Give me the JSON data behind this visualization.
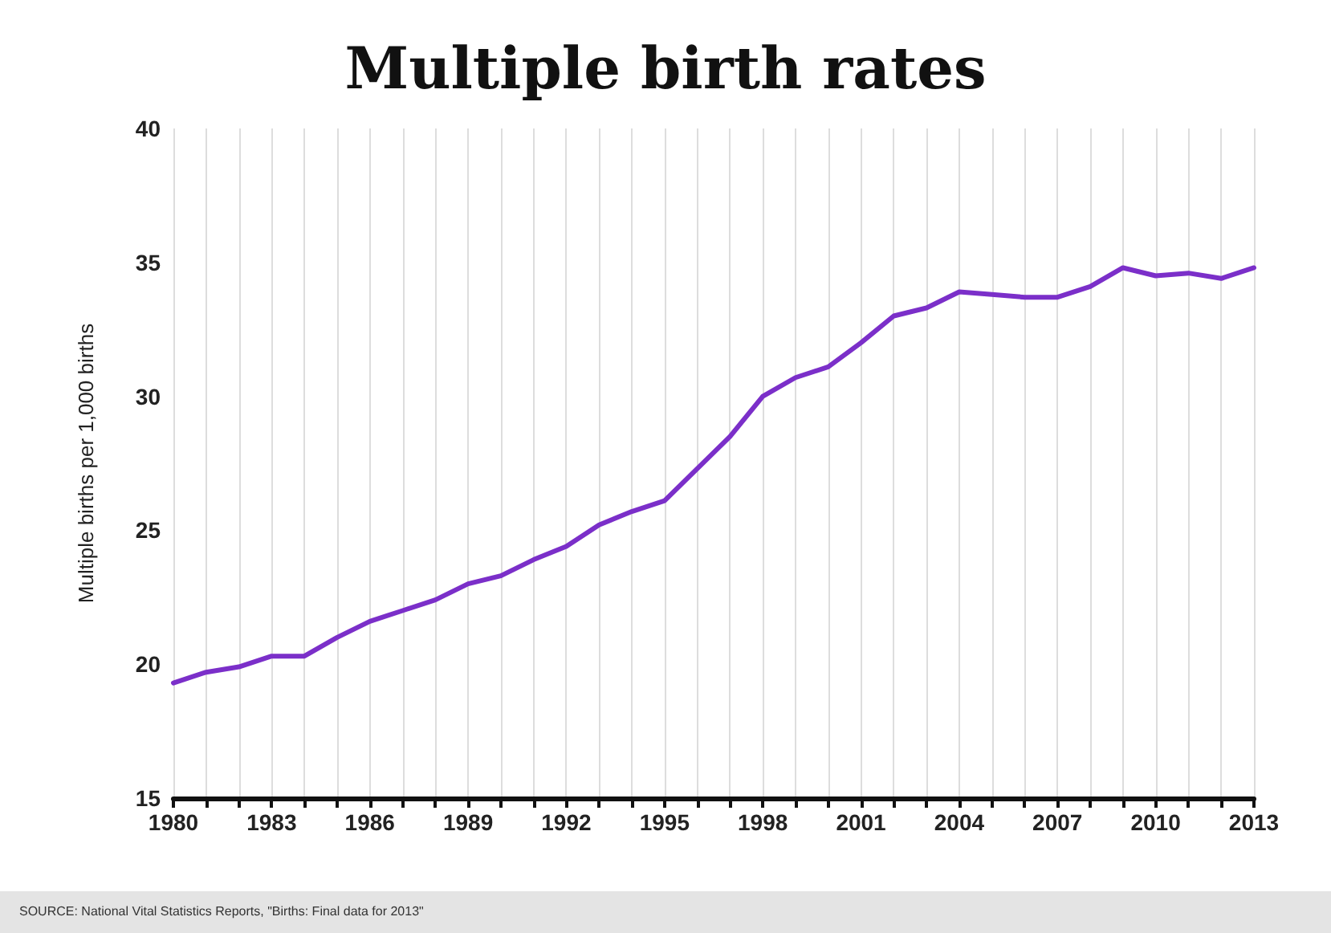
{
  "chart_data": {
    "type": "line",
    "title": "Multiple birth rates",
    "ylabel": "Multiple births per 1,000 births",
    "x": [
      1980,
      1981,
      1982,
      1983,
      1984,
      1985,
      1986,
      1987,
      1988,
      1989,
      1990,
      1991,
      1992,
      1993,
      1994,
      1995,
      1996,
      1997,
      1998,
      1999,
      2000,
      2001,
      2002,
      2003,
      2004,
      2005,
      2006,
      2007,
      2008,
      2009,
      2010,
      2011,
      2012,
      2013
    ],
    "series": [
      {
        "color": "#7b2fc9",
        "values": [
          19.3,
          19.7,
          19.9,
          20.3,
          20.3,
          21.0,
          21.6,
          22.0,
          22.4,
          23.0,
          23.3,
          23.9,
          24.4,
          25.2,
          25.7,
          26.1,
          27.3,
          28.5,
          30.0,
          30.7,
          31.1,
          32.0,
          33.0,
          33.3,
          33.9,
          33.8,
          33.7,
          33.7,
          34.1,
          34.8,
          34.5,
          34.6,
          34.4,
          34.8
        ]
      }
    ],
    "xlim": [
      1980,
      2013
    ],
    "xticks": [
      1980,
      {
        "value": 1981,
        "label": null
      },
      {
        "value": 1982,
        "label": null
      },
      1983,
      {
        "value": 1984,
        "label": null
      },
      {
        "value": 1985,
        "label": null
      },
      1986,
      {
        "value": 1987,
        "label": null
      },
      {
        "value": 1988,
        "label": null
      },
      1989,
      {
        "value": 1990,
        "label": null
      },
      {
        "value": 1991,
        "label": null
      },
      1992,
      {
        "value": 1993,
        "label": null
      },
      {
        "value": 1994,
        "label": null
      },
      1995,
      {
        "value": 1996,
        "label": null
      },
      {
        "value": 1997,
        "label": null
      },
      1998,
      {
        "value": 1999,
        "label": null
      },
      {
        "value": 2000,
        "label": null
      },
      2001,
      {
        "value": 2002,
        "label": null
      },
      {
        "value": 2003,
        "label": null
      },
      2004,
      {
        "value": 2005,
        "label": null
      },
      {
        "value": 2006,
        "label": null
      },
      2007,
      {
        "value": 2008,
        "label": null
      },
      {
        "value": 2009,
        "label": null
      },
      2010,
      {
        "value": 2011,
        "label": null
      },
      {
        "value": 2012,
        "label": null
      },
      2013
    ],
    "ylim": [
      15,
      40
    ],
    "yticks": [
      15,
      20,
      25,
      30,
      35,
      40
    ],
    "grid": "x",
    "marker": "none",
    "line_style": "solid",
    "annotations": [
      "SOURCE: National Vital Statistics Reports, \"Births: Final data for 2013\""
    ]
  }
}
